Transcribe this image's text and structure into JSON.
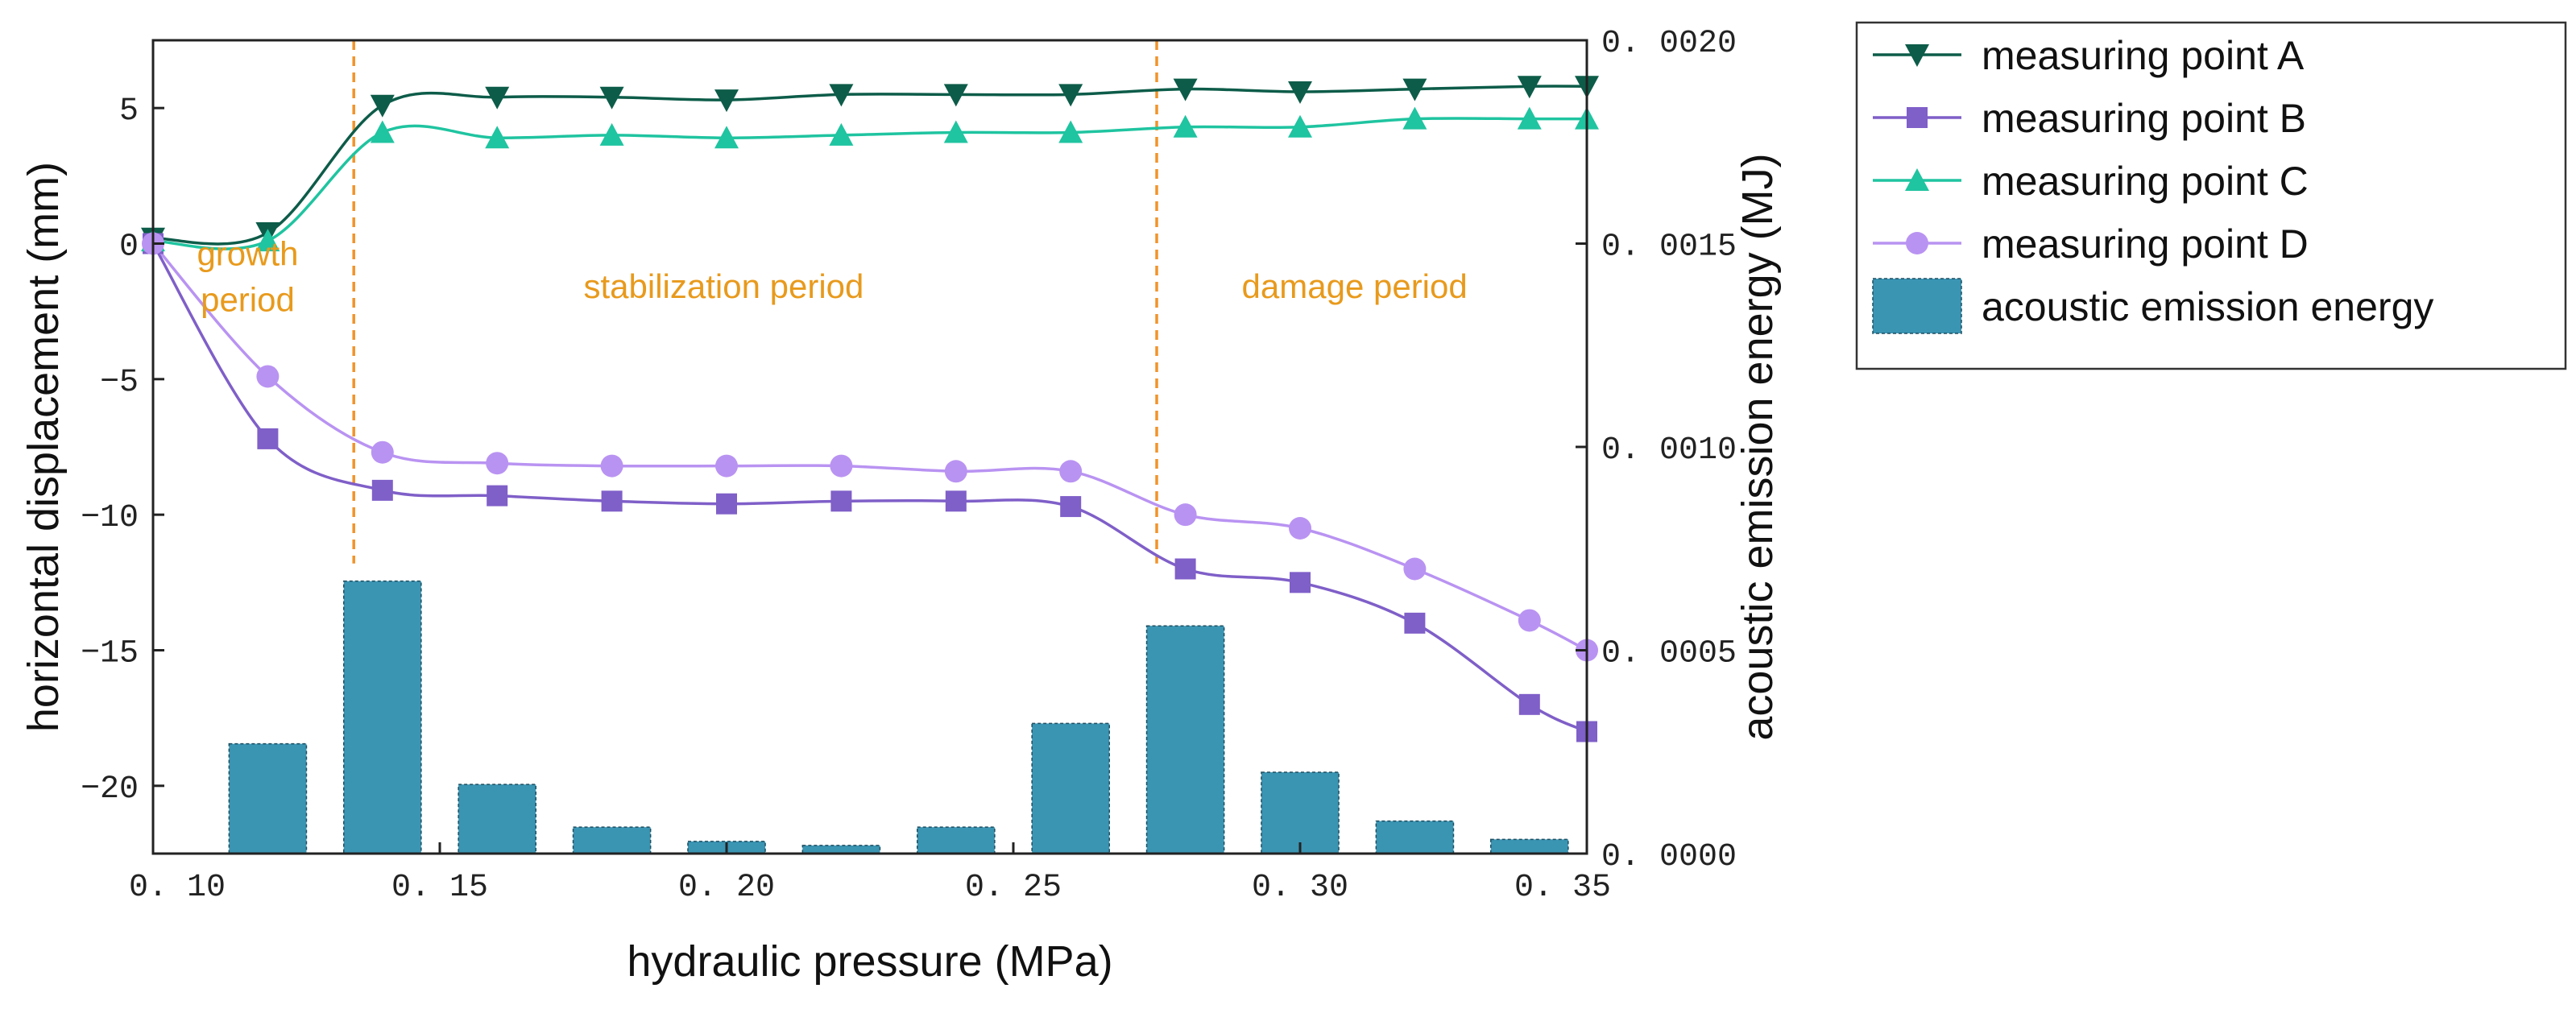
{
  "chart_data": {
    "type": "line",
    "xlabel": "hydraulic pressure (MPa)",
    "ylabel": "horizontal displacement (mm)",
    "y2label": "acoustic emission energy (MJ)",
    "xlim": [
      0.1,
      0.35
    ],
    "ylim": [
      -22.5,
      7.5
    ],
    "y2lim": [
      0.0,
      0.002
    ],
    "x_ticks": [
      0.1,
      0.15,
      0.2,
      0.25,
      0.3,
      0.35
    ],
    "x_tick_labels": [
      "0. 10",
      "0. 15",
      "0. 20",
      "0. 25",
      "0. 30",
      "0. 35"
    ],
    "y_ticks": [
      5,
      0,
      -5,
      -10,
      -15,
      -20
    ],
    "y_tick_labels": [
      "5",
      "0",
      "−5",
      "−10",
      "−15",
      "−20"
    ],
    "y2_ticks": [
      0.002,
      0.0015,
      0.001,
      0.0005,
      0.0
    ],
    "y2_tick_labels": [
      "0. 0020",
      "0. 0015",
      "0. 0010",
      "0. 0005",
      "0. 0000"
    ],
    "x": [
      0.1,
      0.12,
      0.14,
      0.16,
      0.18,
      0.2,
      0.22,
      0.24,
      0.26,
      0.28,
      0.3,
      0.32,
      0.34,
      0.35
    ],
    "series": [
      {
        "name": "measuring point A",
        "color": "#0d5c49",
        "marker": "triangle-down",
        "values": [
          0.2,
          0.4,
          5.1,
          5.4,
          5.4,
          5.3,
          5.5,
          5.5,
          5.5,
          5.7,
          5.6,
          5.7,
          5.8,
          5.8
        ]
      },
      {
        "name": "measuring point B",
        "color": "#7f5fc8",
        "marker": "square",
        "values": [
          0.0,
          -7.2,
          -9.1,
          -9.3,
          -9.5,
          -9.6,
          -9.5,
          -9.5,
          -9.7,
          -12.0,
          -12.5,
          -14.0,
          -17.0,
          -18.0
        ]
      },
      {
        "name": "measuring point C",
        "color": "#1fc4a0",
        "marker": "triangle-up",
        "values": [
          0.1,
          0.1,
          4.1,
          3.9,
          4.0,
          3.9,
          4.0,
          4.1,
          4.1,
          4.3,
          4.3,
          4.6,
          4.6,
          4.6
        ]
      },
      {
        "name": "measuring point D",
        "color": "#b993f2",
        "marker": "circle",
        "values": [
          0.0,
          -4.9,
          -7.7,
          -8.1,
          -8.2,
          -8.2,
          -8.2,
          -8.4,
          -8.4,
          -10.0,
          -10.5,
          -12.0,
          -13.9,
          -15.0
        ]
      }
    ],
    "bars": {
      "name": "acoustic emission energy",
      "color": "#3a95b3",
      "x": [
        0.12,
        0.14,
        0.16,
        0.18,
        0.2,
        0.22,
        0.24,
        0.26,
        0.28,
        0.3,
        0.32,
        0.34
      ],
      "values": [
        0.00027,
        0.00067,
        0.00017,
        6.5e-05,
        3e-05,
        2e-05,
        6.5e-05,
        0.00032,
        0.00056,
        0.0002,
        8e-05,
        3.5e-05
      ]
    },
    "period_dividers": [
      0.135,
      0.275
    ],
    "period_labels": [
      {
        "text": "growth",
        "x": 0.1165,
        "y": -0.8
      },
      {
        "text": "period",
        "x": 0.1165,
        "y": -2.5
      },
      {
        "text": "stabilization period",
        "x": 0.1995,
        "y": -2.0
      },
      {
        "text": "damage period",
        "x": 0.3095,
        "y": -2.0
      }
    ],
    "legend_position": "outside-right-top"
  }
}
